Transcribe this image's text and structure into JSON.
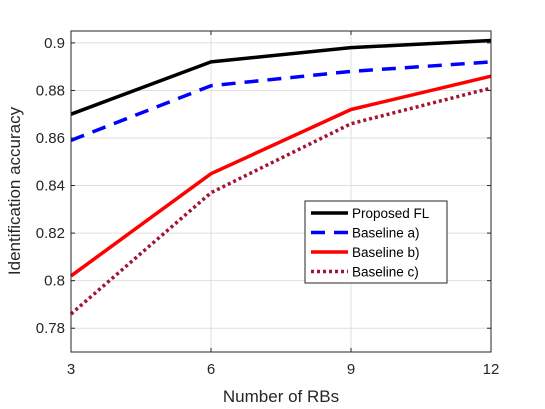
{
  "chart_data": {
    "type": "line",
    "title": "",
    "xlabel": "Number of RBs",
    "ylabel": "Identification accuracy",
    "x": [
      3,
      6,
      9,
      12
    ],
    "xlim": [
      3,
      12
    ],
    "ylim": [
      0.77,
      0.905
    ],
    "xticks": [
      3,
      6,
      9,
      12
    ],
    "yticks": [
      0.78,
      0.8,
      0.82,
      0.84,
      0.86,
      0.88,
      0.9
    ],
    "xtick_labels": [
      "3",
      "6",
      "9",
      "12"
    ],
    "ytick_labels": [
      "0.78",
      "0.8",
      "0.82",
      "0.84",
      "0.86",
      "0.88",
      "0.9"
    ],
    "grid": true,
    "legend_position": "lower-right",
    "series": [
      {
        "name": "Proposed FL",
        "values": [
          0.87,
          0.892,
          0.898,
          0.901
        ],
        "color": "#000000",
        "style": "solid"
      },
      {
        "name": "Baseline a)",
        "values": [
          0.859,
          0.882,
          0.888,
          0.892
        ],
        "color": "#0000ff",
        "style": "dashed"
      },
      {
        "name": "Baseline b)",
        "values": [
          0.802,
          0.845,
          0.872,
          0.886
        ],
        "color": "#ff0000",
        "style": "solid"
      },
      {
        "name": "Baseline c)",
        "values": [
          0.786,
          0.837,
          0.866,
          0.881
        ],
        "color": "#a2142f",
        "style": "dotted"
      }
    ]
  }
}
